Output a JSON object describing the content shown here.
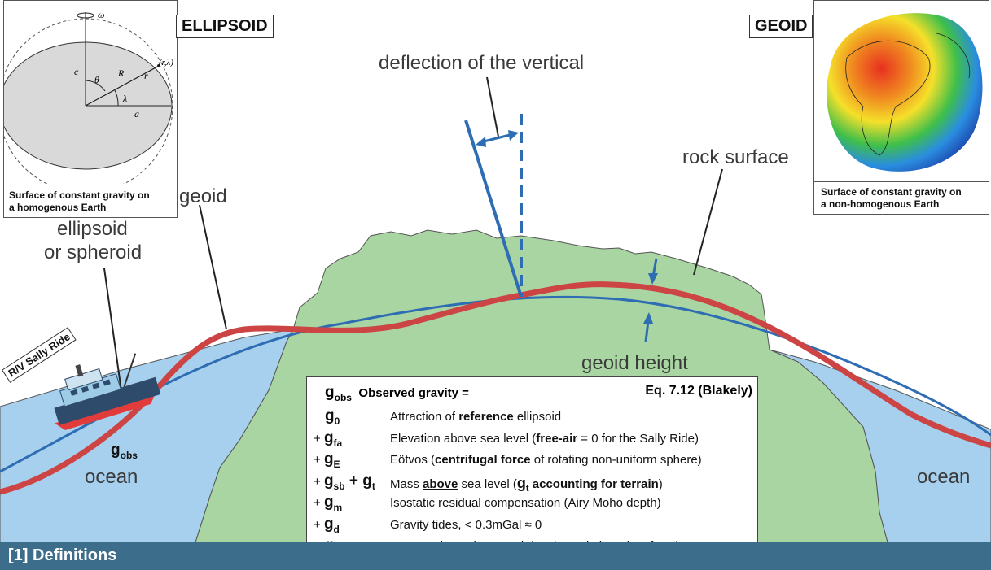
{
  "labels": {
    "deflection": "deflection of the vertical",
    "rock_surface": "rock surface",
    "geoid": "geoid",
    "ellipsoid_line1": "ellipsoid",
    "ellipsoid_line2": "or spheroid",
    "geoid_height": "geoid height",
    "ocean_left": "ocean",
    "ocean_right": "ocean",
    "ship": "R/V Sally Ride",
    "g_obs_base": "g",
    "g_obs_sub": "obs"
  },
  "ellipsoid_inset": {
    "title": "ELLIPSOID",
    "caption_line1": "Surface of constant gravity on",
    "caption_line2": "a homogenous Earth",
    "symbols": {
      "omega": "ω",
      "c": "c",
      "theta": "θ",
      "R": "R",
      "r": "r",
      "point": "(r,λ)",
      "lambda": "λ",
      "a": "a"
    }
  },
  "geoid_inset": {
    "title": "GEOID",
    "caption_line1": "Surface of constant gravity on",
    "caption_line2": "a non-homogenous Earth"
  },
  "equation": {
    "header_sym": "g",
    "header_sub": "obs",
    "header_text": "Observed gravity =",
    "reference": "Eq. 7.12 (Blakely)",
    "rows": [
      {
        "prefix": "",
        "sym": "g",
        "sub": "0",
        "parts": [
          [
            "Attraction of ",
            ""
          ],
          [
            "reference",
            "b"
          ],
          [
            " ellipsoid",
            ""
          ]
        ]
      },
      {
        "prefix": "+ ",
        "sym": "g",
        "sub": "fa",
        "parts": [
          [
            "Elevation above sea level (",
            ""
          ],
          [
            "free-air",
            "b"
          ],
          [
            " = 0 for the Sally Ride)",
            ""
          ]
        ]
      },
      {
        "prefix": "+ ",
        "sym": "g",
        "sub": "E",
        "parts": [
          [
            "Eötvos (",
            ""
          ],
          [
            "centrifugal force",
            "b"
          ],
          [
            " of rotating non-uniform sphere)",
            ""
          ]
        ]
      },
      {
        "prefix": "+ ",
        "sym": "g",
        "sub": "sb",
        "extra_sym": " + g",
        "extra_sub": "t",
        "parts": [
          [
            "Mass ",
            ""
          ],
          [
            "above",
            "bu"
          ],
          [
            " sea level (",
            ""
          ],
          [
            "g",
            "bb"
          ],
          [
            "t",
            "bsub"
          ],
          [
            " accounting for terrain",
            "b"
          ],
          [
            ")",
            ""
          ]
        ]
      },
      {
        "prefix": "+ ",
        "sym": "g",
        "sub": "m",
        "parts": [
          [
            "Isostatic residual compensation (Airy Moho depth)",
            ""
          ]
        ]
      },
      {
        "prefix": "+ ",
        "sym": "g",
        "sub": "d",
        "parts": [
          [
            "Gravity tides, < 0.3mGal ≈ 0",
            ""
          ]
        ]
      },
      {
        "prefix": "+ ",
        "sym": "g",
        "sub": "cb",
        "parts": [
          [
            "Crust and Mantle Lateral density variations (",
            ""
          ],
          [
            "geology",
            "b"
          ],
          [
            ")",
            ""
          ]
        ]
      }
    ]
  },
  "footer": "[1] Definitions",
  "colors": {
    "rock": "#a8d5a2",
    "ocean": "#a6d0ee",
    "geoid": "#cc4444",
    "ellipsoid": "#2e6db3",
    "footer": "#3c6d8a"
  }
}
